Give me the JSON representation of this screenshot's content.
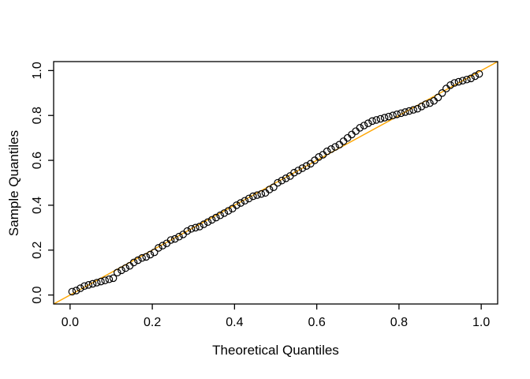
{
  "chart_data": {
    "type": "scatter",
    "title": "",
    "xlabel": "Theoretical Quantiles",
    "ylabel": "Sample Quantiles",
    "x_range": [
      -0.04,
      1.04
    ],
    "y_range": [
      -0.04,
      1.04
    ],
    "grid": false,
    "x_ticks": {
      "values": [
        0,
        0.2,
        0.4,
        0.6,
        0.8,
        1.0
      ],
      "labels": [
        "0.0",
        "0.2",
        "0.4",
        "0.6",
        "0.8",
        "1.0"
      ]
    },
    "y_ticks": {
      "values": [
        0,
        0.2,
        0.4,
        0.6,
        0.8,
        1.0
      ],
      "labels": [
        "0.0",
        "0.2",
        "0.4",
        "0.6",
        "0.8",
        "1.0"
      ]
    },
    "reference_line": {
      "intercept": 0,
      "slope": 1,
      "color": "#FFA500"
    },
    "points": {
      "color": "#000000",
      "x": [
        0.005,
        0.015,
        0.025,
        0.035,
        0.045,
        0.055,
        0.065,
        0.075,
        0.085,
        0.095,
        0.105,
        0.115,
        0.125,
        0.135,
        0.145,
        0.155,
        0.165,
        0.175,
        0.185,
        0.195,
        0.205,
        0.215,
        0.225,
        0.235,
        0.245,
        0.255,
        0.265,
        0.275,
        0.285,
        0.295,
        0.305,
        0.315,
        0.325,
        0.335,
        0.345,
        0.355,
        0.365,
        0.375,
        0.385,
        0.395,
        0.405,
        0.415,
        0.425,
        0.435,
        0.445,
        0.455,
        0.465,
        0.475,
        0.485,
        0.495,
        0.505,
        0.515,
        0.525,
        0.535,
        0.545,
        0.555,
        0.565,
        0.575,
        0.585,
        0.595,
        0.605,
        0.615,
        0.625,
        0.635,
        0.645,
        0.655,
        0.665,
        0.675,
        0.685,
        0.695,
        0.705,
        0.715,
        0.725,
        0.735,
        0.745,
        0.755,
        0.765,
        0.775,
        0.785,
        0.795,
        0.805,
        0.815,
        0.825,
        0.835,
        0.845,
        0.855,
        0.865,
        0.875,
        0.885,
        0.895,
        0.905,
        0.915,
        0.925,
        0.935,
        0.945,
        0.955,
        0.965,
        0.975,
        0.985,
        0.995
      ],
      "y": [
        0.015,
        0.02,
        0.03,
        0.04,
        0.045,
        0.05,
        0.055,
        0.06,
        0.065,
        0.07,
        0.075,
        0.1,
        0.11,
        0.12,
        0.13,
        0.145,
        0.155,
        0.165,
        0.17,
        0.18,
        0.19,
        0.21,
        0.22,
        0.23,
        0.245,
        0.25,
        0.26,
        0.27,
        0.285,
        0.295,
        0.3,
        0.305,
        0.315,
        0.325,
        0.335,
        0.345,
        0.355,
        0.365,
        0.375,
        0.385,
        0.4,
        0.41,
        0.42,
        0.43,
        0.44,
        0.445,
        0.45,
        0.455,
        0.47,
        0.48,
        0.5,
        0.51,
        0.52,
        0.53,
        0.545,
        0.555,
        0.565,
        0.575,
        0.585,
        0.6,
        0.615,
        0.625,
        0.64,
        0.65,
        0.66,
        0.67,
        0.685,
        0.7,
        0.715,
        0.73,
        0.745,
        0.755,
        0.765,
        0.775,
        0.78,
        0.785,
        0.79,
        0.795,
        0.8,
        0.805,
        0.81,
        0.815,
        0.82,
        0.825,
        0.83,
        0.84,
        0.85,
        0.855,
        0.865,
        0.88,
        0.9,
        0.92,
        0.935,
        0.945,
        0.95,
        0.955,
        0.96,
        0.965,
        0.975,
        0.985
      ]
    }
  }
}
